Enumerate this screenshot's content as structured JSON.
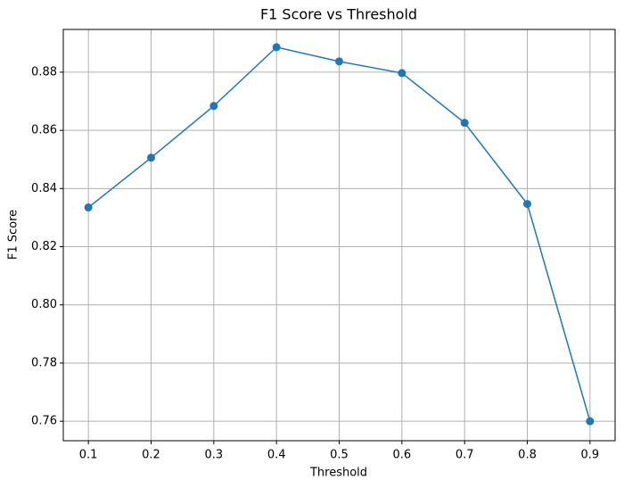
{
  "chart_data": {
    "type": "line",
    "title": "F1 Score vs Threshold",
    "x_label": "Threshold",
    "y_label": "F1 Score",
    "x": [
      0.1,
      0.2,
      0.3,
      0.4,
      0.5,
      0.6,
      0.7,
      0.8,
      0.9
    ],
    "series": [
      {
        "name": "F1 Score",
        "color": "#1f77b4",
        "values": [
          0.8335,
          0.8506,
          0.8684,
          0.8886,
          0.8837,
          0.8797,
          0.8626,
          0.8347,
          0.76
        ]
      }
    ],
    "xlim": [
      0.06,
      0.94
    ],
    "xticks": [
      0.1,
      0.2,
      0.3,
      0.4,
      0.5,
      0.6,
      0.7,
      0.8,
      0.9
    ],
    "ylim": [
      0.7533,
      0.8947
    ],
    "yticks": [
      0.76,
      0.78,
      {
        "value": 0.8,
        "label": "0.80"
      },
      0.82,
      0.84,
      0.86,
      0.88
    ],
    "grid": true
  }
}
